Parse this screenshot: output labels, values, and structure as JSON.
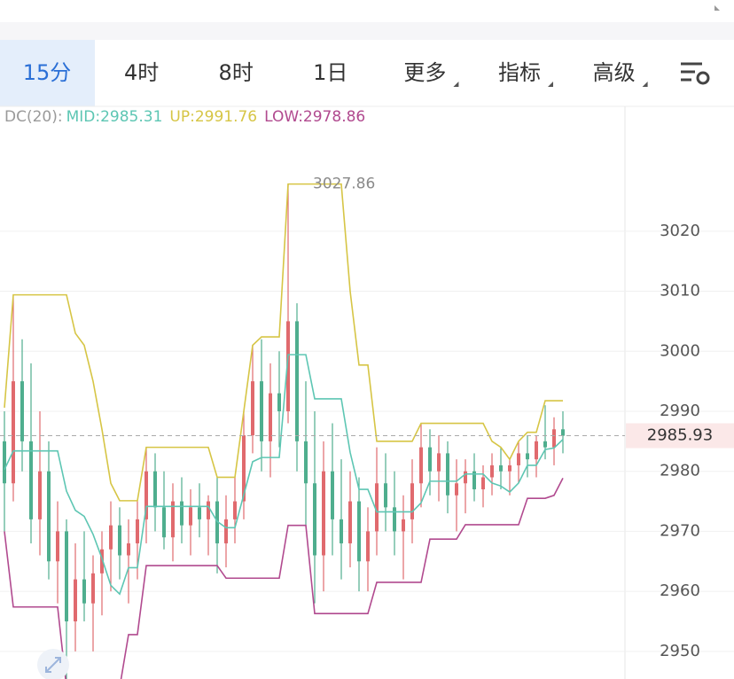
{
  "tabs": [
    {
      "label": "15分",
      "selected": true
    },
    {
      "label": "4时"
    },
    {
      "label": "8时"
    },
    {
      "label": "1日"
    },
    {
      "label": "更多",
      "menu": true
    },
    {
      "label": "指标",
      "menu": true
    },
    {
      "label": "高级",
      "menu": true
    }
  ],
  "chart_data": {
    "type": "candlestick",
    "indicator": "DC(20):",
    "categories": [
      null,
      null,
      null,
      null,
      null,
      null,
      null,
      null,
      null,
      null,
      null,
      null,
      null,
      null,
      null,
      null,
      null,
      null,
      null,
      null,
      null,
      null,
      null,
      null,
      null,
      null,
      null,
      null,
      null,
      null,
      null,
      null,
      null,
      null,
      null,
      null,
      null,
      null,
      null,
      null,
      null,
      null,
      null,
      null,
      null,
      null,
      null,
      null,
      null,
      null,
      null,
      null,
      null,
      null,
      null,
      null,
      null,
      null,
      null,
      null,
      null,
      null,
      null,
      null
    ],
    "candles": {
      "up_color": "#e06a6e",
      "down_color": "#4fae8e",
      "open": [
        2985,
        2978,
        2995,
        2985,
        2972,
        2980,
        2965,
        2970,
        2955,
        2962,
        2958,
        2963,
        2967,
        2971,
        2966,
        2968,
        2972,
        2980,
        2974,
        2969,
        2975,
        2971,
        2974,
        2972,
        2975,
        2968,
        2972,
        2975,
        2986,
        2995,
        2985,
        2993,
        2990,
        3005,
        2985,
        2978,
        2966,
        2980,
        2972,
        2968,
        2975,
        2965,
        2970,
        2978,
        2974,
        2970,
        2972,
        2978,
        2984,
        2980,
        2983,
        2976,
        2978,
        2980,
        2977,
        2979,
        2981,
        2980,
        2981,
        2983,
        2982,
        2985,
        2984,
        2987
      ],
      "high": [
        2990,
        3009,
        3002,
        2998,
        2990,
        2985,
        2975,
        2972,
        2968,
        2970,
        2966,
        2970,
        2975,
        2974,
        2972,
        2975,
        2984,
        2983,
        2980,
        2978,
        2979,
        2977,
        2978,
        2976,
        2979,
        2976,
        2979,
        2990,
        3001,
        3002,
        2998,
        3000,
        3027.86,
        3008,
        2995,
        2990,
        2985,
        2988,
        2982,
        2980,
        2979,
        2974,
        2984,
        2983,
        2980,
        2976,
        2982,
        2988,
        2987,
        2986,
        2985,
        2982,
        2982,
        2983,
        2981,
        2983,
        2984,
        2982,
        2985,
        2986,
        2986,
        2991,
        2989,
        2990
      ],
      "low": [
        2970,
        2975,
        2980,
        2968,
        2966,
        2962,
        2958,
        2944,
        2950,
        2955,
        2950,
        2956,
        2960,
        2962,
        2958,
        2962,
        2968,
        2970,
        2967,
        2965,
        2968,
        2966,
        2969,
        2966,
        2963,
        2964,
        2968,
        2972,
        2983,
        2980,
        2979,
        2984,
        2988,
        2980,
        2971,
        2958,
        2960,
        2966,
        2962,
        2964,
        2960,
        2960,
        2966,
        2970,
        2966,
        2962,
        2968,
        2974,
        2976,
        2975,
        2973,
        2970,
        2973,
        2975,
        2974,
        2976,
        2977,
        2976,
        2978,
        2979,
        2979,
        2982,
        2981,
        2983
      ],
      "close": [
        2978,
        2995,
        2985,
        2972,
        2980,
        2965,
        2970,
        2955,
        2962,
        2958,
        2963,
        2967,
        2971,
        2966,
        2968,
        2972,
        2980,
        2974,
        2969,
        2975,
        2971,
        2974,
        2972,
        2975,
        2968,
        2972,
        2975,
        2986,
        2995,
        2985,
        2993,
        2990,
        3005,
        2985,
        2978,
        2966,
        2980,
        2972,
        2968,
        2975,
        2965,
        2970,
        2978,
        2974,
        2970,
        2972,
        2978,
        2984,
        2980,
        2983,
        2976,
        2978,
        2980,
        2977,
        2979,
        2981,
        2980,
        2981,
        2983,
        2982,
        2985,
        2984,
        2987,
        2985.93
      ]
    },
    "series": [
      {
        "name": "MID:2985.31",
        "color": "#5dc6b3",
        "values": [
          2980.3,
          2983.4,
          2983.4,
          2983.4,
          2983.4,
          2983.4,
          2983.4,
          2976.7,
          2973.5,
          2972.5,
          2969.5,
          2965.5,
          2961,
          2959.55,
          2963.95,
          2963.95,
          2974.15,
          2974.15,
          2974.15,
          2974.15,
          2974.15,
          2974.15,
          2974.15,
          2974.15,
          2971.65,
          2970.6,
          2970.6,
          2976.1,
          2981.6,
          2982.3,
          2982.3,
          2982.3,
          2999.43,
          2999.43,
          2999.43,
          2992.08,
          2992.08,
          2992.08,
          2992.08,
          2983.15,
          2977,
          2977,
          2973.25,
          2973.25,
          2973.25,
          2973.25,
          2973.25,
          2974.75,
          2978.35,
          2978.35,
          2978.35,
          2978.35,
          2979.55,
          2979.55,
          2979.55,
          2978.05,
          2977.55,
          2976.55,
          2978.05,
          2981,
          2981,
          2983.63,
          2983.88,
          2985.31
        ]
      },
      {
        "name": "UP:2991.76",
        "color": "#d6c545",
        "values": [
          2990.6,
          3009.4,
          3009.4,
          3009.4,
          3009.4,
          3009.4,
          3009.4,
          3009.4,
          3003,
          3001,
          2995,
          2987,
          2978,
          2975.1,
          2975.1,
          2975.1,
          2984,
          2984,
          2984,
          2984,
          2984,
          2984,
          2984,
          2984,
          2979,
          2979,
          2979,
          2990,
          3001,
          3002.4,
          3002.4,
          3002.4,
          3027.86,
          3027.86,
          3027.86,
          3027.86,
          3027.86,
          3027.86,
          3027.86,
          3010,
          2997.7,
          2997.7,
          2985,
          2985,
          2985,
          2985,
          2985,
          2988,
          2988,
          2988,
          2988,
          2988,
          2988,
          2988,
          2988,
          2985,
          2984,
          2982,
          2985,
          2986.5,
          2986.5,
          2991.76,
          2991.76,
          2991.76
        ]
      },
      {
        "name": "LOW:2978.86",
        "color": "#b14a8f",
        "values": [
          2970,
          2957.4,
          2957.4,
          2957.4,
          2957.4,
          2957.4,
          2957.4,
          2944,
          2944,
          2944,
          2944,
          2944,
          2944,
          2944,
          2952.8,
          2952.8,
          2964.3,
          2964.3,
          2964.3,
          2964.3,
          2964.3,
          2964.3,
          2964.3,
          2964.3,
          2964.3,
          2962.2,
          2962.2,
          2962.2,
          2962.2,
          2962.2,
          2962.2,
          2962.2,
          2971,
          2971,
          2971,
          2956.3,
          2956.3,
          2956.3,
          2956.3,
          2956.3,
          2956.3,
          2956.3,
          2961.5,
          2961.5,
          2961.5,
          2961.5,
          2961.5,
          2961.5,
          2968.7,
          2968.7,
          2968.7,
          2968.7,
          2971.1,
          2971.1,
          2971.1,
          2971.1,
          2971.1,
          2971.1,
          2971.1,
          2975.5,
          2975.5,
          2975.5,
          2976,
          2978.86
        ]
      }
    ],
    "max_value": 3027.86,
    "last_price": 2985.93,
    "ylim": [
      2945.4,
      3040.8
    ],
    "yticks": [
      2950,
      2960,
      2970,
      2980,
      2990,
      3000,
      3010,
      3020
    ],
    "grid": true
  }
}
